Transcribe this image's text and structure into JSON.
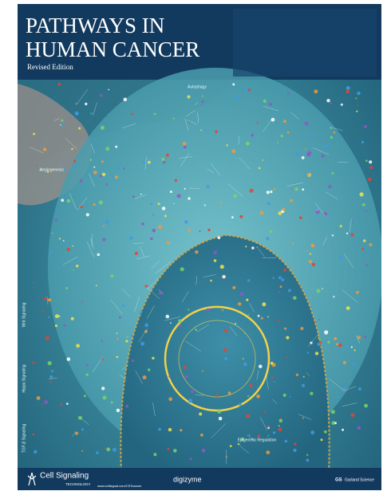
{
  "header": {
    "title_line1": "PATHWAYS IN",
    "title_line2": "HUMAN CANCER",
    "subtitle": "Revised Edition"
  },
  "labels": {
    "autophagy": "Autophagy",
    "angiogenesis": "Angiogenesis",
    "epigenetic": "Epigenetic Regulation"
  },
  "side_labels": [
    "Wnt Signaling",
    "Hippo Signaling",
    "TGF-β Signaling"
  ],
  "footer": {
    "brand": "Cell Signaling",
    "brand_sub": "TECHNOLOGY",
    "url": "www.cellsignal.com/CSTcancer",
    "partner1": "digizyme",
    "partner2": "Garland Science"
  }
}
